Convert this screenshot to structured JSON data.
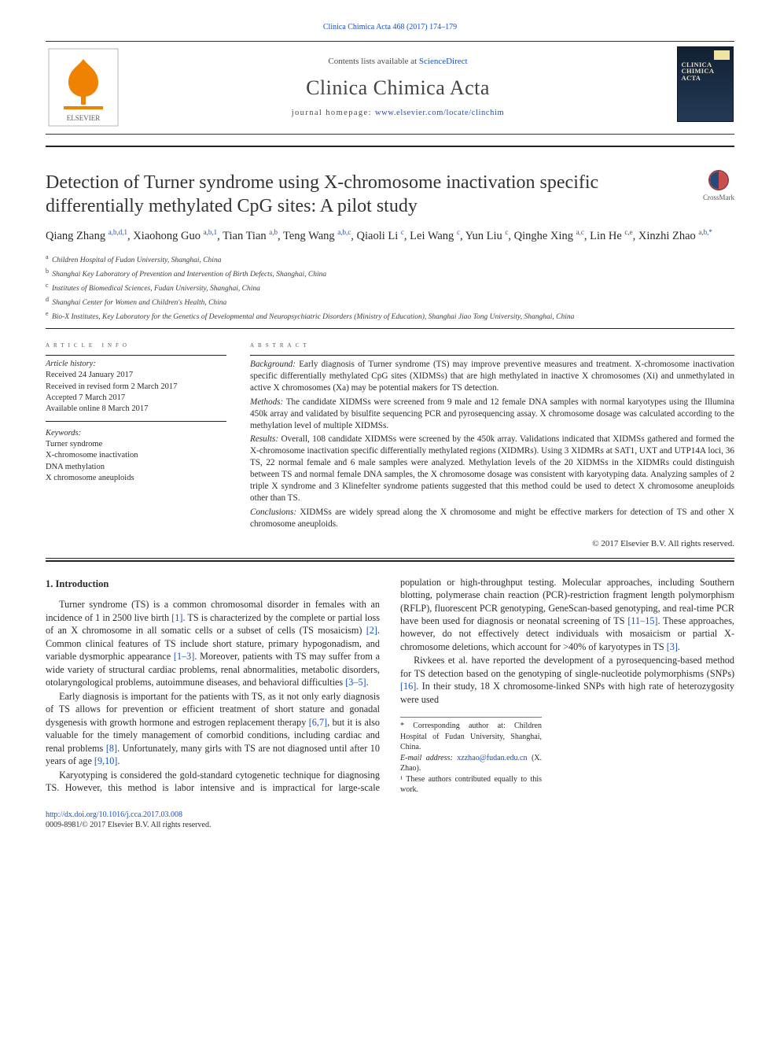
{
  "top_link": "Clinica Chimica Acta 468 (2017) 174–179",
  "masthead": {
    "contents_line_prefix": "Contents lists available at ",
    "contents_link_text": "ScienceDirect",
    "journal_name": "Clinica Chimica Acta",
    "homepage_prefix": "journal homepage: ",
    "homepage_url_text": "www.elsevier.com/locate/clinchim",
    "cover_title": "CLINICA CHIMICA ACTA"
  },
  "crossmark_label": "CrossMark",
  "article": {
    "title": "Detection of Turner syndrome using X-chromosome inactivation specific differentially methylated CpG sites: A pilot study",
    "authors_html": [
      {
        "name": "Qiang Zhang",
        "sup": "a,b,d,1"
      },
      {
        "name": "Xiaohong Guo",
        "sup": "a,b,1"
      },
      {
        "name": "Tian Tian",
        "sup": "a,b"
      },
      {
        "name": "Teng Wang",
        "sup": "a,b,c"
      },
      {
        "name": "Qiaoli Li",
        "sup": "c"
      },
      {
        "name": "Lei Wang",
        "sup": "c"
      },
      {
        "name": "Yun Liu",
        "sup": "c"
      },
      {
        "name": "Qinghe Xing",
        "sup": "a,c"
      },
      {
        "name": "Lin He",
        "sup": "c,e"
      },
      {
        "name": "Xinzhi Zhao",
        "sup": "a,b,*"
      }
    ],
    "affiliations": [
      {
        "key": "a",
        "text": "Children Hospital of Fudan University, Shanghai, China"
      },
      {
        "key": "b",
        "text": "Shanghai Key Laboratory of Prevention and Intervention of Birth Defects, Shanghai, China"
      },
      {
        "key": "c",
        "text": "Institutes of Biomedical Sciences, Fudan University, Shanghai, China"
      },
      {
        "key": "d",
        "text": "Shanghai Center for Women and Children's Health, China"
      },
      {
        "key": "e",
        "text": "Bio-X Institutes, Key Laboratory for the Genetics of Developmental and Neuropsychiatric Disorders (Ministry of Education), Shanghai Jiao Tong University, Shanghai, China"
      }
    ]
  },
  "article_info": {
    "heading": "article info",
    "history_label": "Article history:",
    "history": [
      "Received 24 January 2017",
      "Received in revised form 2 March 2017",
      "Accepted 7 March 2017",
      "Available online 8 March 2017"
    ],
    "keywords_label": "Keywords:",
    "keywords": [
      "Turner syndrome",
      "X-chromosome inactivation",
      "DNA methylation",
      "X chromosome aneuploids"
    ]
  },
  "abstract": {
    "heading": "abstract",
    "paras": [
      {
        "label": "Background:",
        "text": "Early diagnosis of Turner syndrome (TS) may improve preventive measures and treatment. X-chromosome inactivation specific differentially methylated CpG sites (XIDMSs) that are high methylated in inactive X chromosomes (Xi) and unmethylated in active X chromosomes (Xa) may be potential makers for TS detection."
      },
      {
        "label": "Methods:",
        "text": "The candidate XIDMSs were screened from 9 male and 12 female DNA samples with normal karyotypes using the Illumina 450k array and validated by bisulfite sequencing PCR and pyrosequencing assay. X chromosome dosage was calculated according to the methylation level of multiple XIDMSs."
      },
      {
        "label": "Results:",
        "text": "Overall, 108 candidate XIDMSs were screened by the 450k array. Validations indicated that XIDMSs gathered and formed the X-chromosome inactivation specific differentially methylated regions (XIDMRs). Using 3 XIDMRs at SAT1, UXT and UTP14A loci, 36 TS, 22 normal female and 6 male samples were analyzed. Methylation levels of the 20 XIDMSs in the XIDMRs could distinguish between TS and normal female DNA samples, the X chromosome dosage was consistent with karyotyping data. Analyzing samples of 2 triple X syndrome and 3 Klinefelter syndrome patients suggested that this method could be used to detect X chromosome aneuploids other than TS."
      },
      {
        "label": "Conclusions:",
        "text": "XIDMSs are widely spread along the X chromosome and might be effective markers for detection of TS and other X chromosome aneuploids."
      }
    ],
    "copyright": "© 2017 Elsevier B.V. All rights reserved."
  },
  "body": {
    "intro_heading": "1. Introduction",
    "paragraphs": [
      "Turner syndrome (TS) is a common chromosomal disorder in females with an incidence of 1 in 2500 live birth [1]. TS is characterized by the complete or partial loss of an X chromosome in all somatic cells or a subset of cells (TS mosaicism) [2]. Common clinical features of TS include short stature, primary hypogonadism, and variable dysmorphic appearance [1–3]. Moreover, patients with TS may suffer from a wide variety of structural cardiac problems, renal abnormalities, metabolic disorders, otolaryngological problems, autoimmune diseases, and behavioral difficulties [3–5].",
      "Early diagnosis is important for the patients with TS, as it not only early diagnosis of TS allows for prevention or efficient treatment of short stature and gonadal dysgenesis with growth hormone and estrogen replacement therapy [6,7], but it is also valuable for the timely management of comorbid conditions, including cardiac and renal problems [8]. Unfortunately, many girls with TS are not diagnosed until after 10 years of age [9,10].",
      "Karyotyping is considered the gold-standard cytogenetic technique for diagnosing TS. However, this method is labor intensive and is impractical for large-scale population or high-throughput testing. Molecular approaches, including Southern blotting, polymerase chain reaction (PCR)-restriction fragment length polymorphism (RFLP), fluorescent PCR genotyping, GeneScan-based genotyping, and real-time PCR have been used for diagnosis or neonatal screening of TS [11–15]. These approaches, however, do not effectively detect individuals with mosaicism or partial X-chromosome deletions, which account for >40% of karyotypes in TS [3].",
      "Rivkees et al. have reported the development of a pyrosequencing-based method for TS detection based on the genotyping of single-nucleotide polymorphisms (SNPs) [16]. In their study, 18 X chromosome-linked SNPs with high rate of heterozygosity were used"
    ]
  },
  "footnotes": {
    "corresponding": "* Corresponding author at: Children Hospital of Fudan University, Shanghai, China.",
    "email_label": "E-mail address:",
    "email": "xzzhao@fudan.edu.cn",
    "email_tail": "(X. Zhao).",
    "equal": "¹ These authors contributed equally to this work."
  },
  "footer": {
    "doi": "http://dx.doi.org/10.1016/j.cca.2017.03.008",
    "issn_line": "0009-8981/© 2017 Elsevier B.V. All rights reserved."
  },
  "colors": {
    "link": "#1a4fbf",
    "text": "#2a2a2a",
    "elsevier_orange": "#ef8200",
    "cover_bg_top": "#122033",
    "cover_bg_bot": "#233a56"
  },
  "ref_linkify": [
    "[1]",
    "[2]",
    "[1–3]",
    "[3–5]",
    "[6,7]",
    "[8]",
    "[9,10]",
    "[11–15]",
    "[3]",
    "[16]"
  ]
}
